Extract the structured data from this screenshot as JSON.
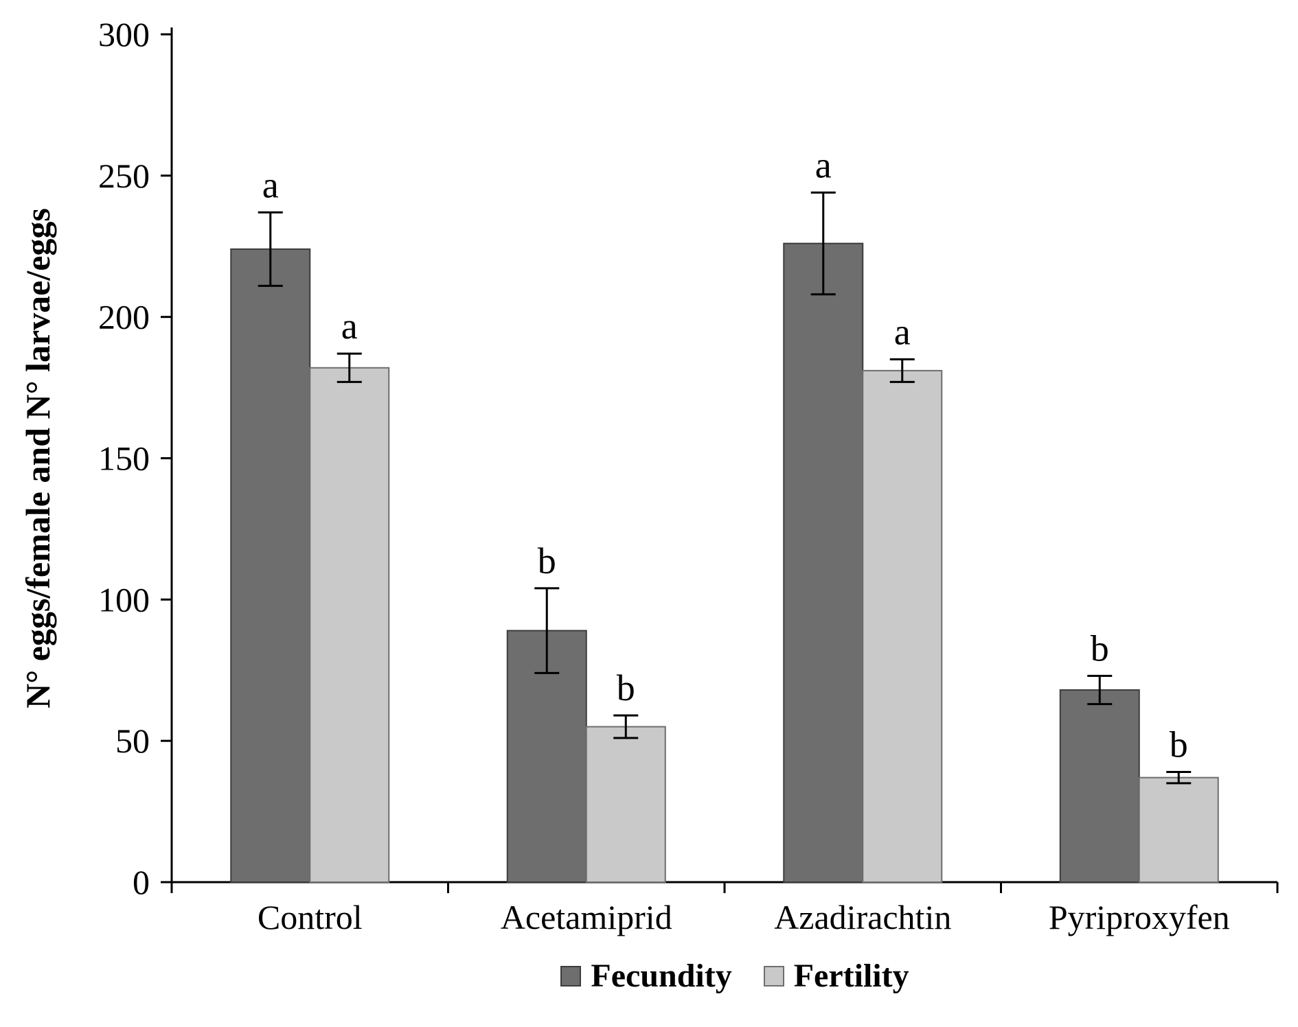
{
  "chart_data": {
    "type": "bar",
    "title": "",
    "xlabel": "",
    "ylabel": "N° eggs/female and N° larvae/eggs",
    "ylim": [
      0,
      300
    ],
    "yticks": [
      0,
      50,
      100,
      150,
      200,
      250,
      300
    ],
    "grid": false,
    "legend_position": "bottom",
    "categories": [
      "Control",
      "Acetamiprid",
      "Azadirachtin",
      "Pyriproxyfen"
    ],
    "series": [
      {
        "name": "Fecundity",
        "color": "#6e6e6e",
        "border_color": "#3c3c3c",
        "values": [
          224,
          89,
          226,
          68
        ],
        "errors": [
          13,
          15,
          18,
          5
        ],
        "sig_letters": [
          "a",
          "b",
          "a",
          "b"
        ]
      },
      {
        "name": "Fertility",
        "color": "#c9c9c9",
        "border_color": "#6e6e6e",
        "values": [
          182,
          55,
          181,
          37
        ],
        "errors": [
          5,
          4,
          4,
          2
        ],
        "sig_letters": [
          "a",
          "b",
          "a",
          "b"
        ]
      }
    ],
    "axis_color": "#000000",
    "error_bar_color": "#000000"
  }
}
